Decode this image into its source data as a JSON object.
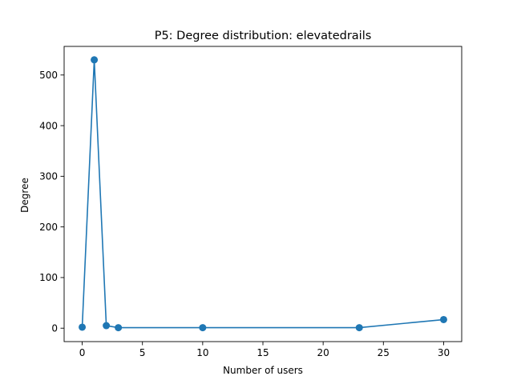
{
  "chart_data": {
    "type": "line",
    "title": "P5: Degree distribution: elevatedrails",
    "xlabel": "Number of users",
    "ylabel": "Degree",
    "xlim": [
      -1.5,
      31.5
    ],
    "ylim": [
      -26.5,
      556.5
    ],
    "xticks": [
      0,
      5,
      10,
      15,
      20,
      25,
      30
    ],
    "yticks": [
      0,
      100,
      200,
      300,
      400,
      500
    ],
    "grid": false,
    "marker": "circle",
    "series": [
      {
        "color": "#1f77b4",
        "x": [
          0,
          1,
          2,
          3,
          10,
          23,
          30
        ],
        "y": [
          2,
          530,
          5,
          1,
          1,
          1,
          17
        ]
      }
    ]
  }
}
